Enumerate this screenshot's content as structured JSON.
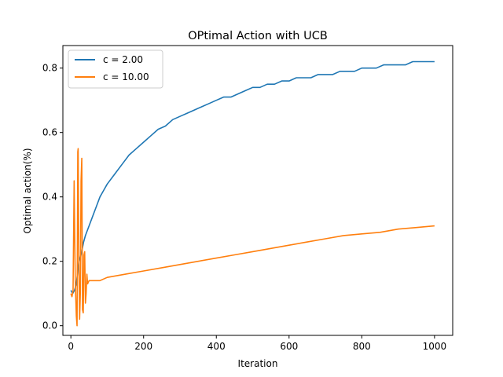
{
  "chart_data": {
    "type": "line",
    "title": "OPtimal Action with UCB",
    "xlabel": "Iteration",
    "ylabel": "Optimal action(%)",
    "xlim": [
      -22,
      1050
    ],
    "ylim": [
      -0.03,
      0.87
    ],
    "x_ticks": [
      0,
      200,
      400,
      600,
      800,
      1000
    ],
    "x_tick_labels": [
      "0",
      "200",
      "400",
      "600",
      "800",
      "1000"
    ],
    "y_ticks": [
      0.0,
      0.2,
      0.4,
      0.6,
      0.8
    ],
    "y_tick_labels": [
      "0.0",
      "0.2",
      "0.4",
      "0.6",
      "0.8"
    ],
    "grid": false,
    "legend_position": "top-left",
    "series": [
      {
        "name": "c = 2.00",
        "color": "#1f77b4",
        "x": [
          0,
          5,
          10,
          15,
          18,
          20,
          22,
          25,
          30,
          35,
          40,
          50,
          60,
          70,
          80,
          90,
          100,
          120,
          140,
          160,
          180,
          200,
          220,
          240,
          260,
          280,
          300,
          320,
          340,
          360,
          380,
          400,
          420,
          440,
          460,
          480,
          500,
          520,
          540,
          560,
          580,
          600,
          620,
          640,
          660,
          680,
          700,
          720,
          740,
          760,
          780,
          800,
          820,
          840,
          860,
          880,
          900,
          920,
          940,
          960,
          980,
          1000
        ],
        "y": [
          0.11,
          0.1,
          0.11,
          0.13,
          0.16,
          0.18,
          0.2,
          0.21,
          0.23,
          0.26,
          0.28,
          0.31,
          0.34,
          0.37,
          0.4,
          0.42,
          0.44,
          0.47,
          0.5,
          0.53,
          0.55,
          0.57,
          0.59,
          0.61,
          0.62,
          0.64,
          0.65,
          0.66,
          0.67,
          0.68,
          0.69,
          0.7,
          0.71,
          0.71,
          0.72,
          0.73,
          0.74,
          0.74,
          0.75,
          0.75,
          0.76,
          0.76,
          0.77,
          0.77,
          0.77,
          0.78,
          0.78,
          0.78,
          0.79,
          0.79,
          0.79,
          0.8,
          0.8,
          0.8,
          0.81,
          0.81,
          0.81,
          0.81,
          0.82,
          0.82,
          0.82,
          0.82
        ]
      },
      {
        "name": "c = 10.00",
        "color": "#ff7f0e",
        "x": [
          0,
          3,
          6,
          9,
          12,
          15,
          17,
          19,
          20,
          22,
          24,
          26,
          28,
          30,
          32,
          34,
          36,
          38,
          40,
          42,
          44,
          46,
          50,
          60,
          80,
          100,
          150,
          200,
          250,
          300,
          350,
          400,
          450,
          500,
          550,
          600,
          650,
          700,
          750,
          800,
          850,
          900,
          950,
          1000
        ],
        "y": [
          0.1,
          0.09,
          0.11,
          0.45,
          0.14,
          0.03,
          0.0,
          0.54,
          0.55,
          0.2,
          0.02,
          0.1,
          0.45,
          0.52,
          0.05,
          0.04,
          0.22,
          0.23,
          0.07,
          0.1,
          0.16,
          0.13,
          0.14,
          0.14,
          0.14,
          0.15,
          0.16,
          0.17,
          0.18,
          0.19,
          0.2,
          0.21,
          0.22,
          0.23,
          0.24,
          0.25,
          0.26,
          0.27,
          0.28,
          0.285,
          0.29,
          0.3,
          0.305,
          0.31
        ]
      }
    ]
  }
}
